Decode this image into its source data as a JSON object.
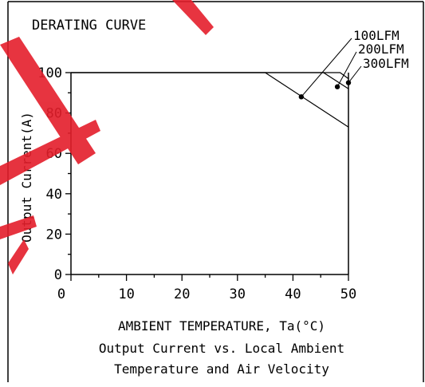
{
  "chart_data": {
    "type": "line",
    "title": "DERATING CURVE",
    "xlabel": "AMBIENT TEMPERATURE, Ta(°C)",
    "ylabel": "Output Current(A)",
    "caption_lines": [
      "Output Current vs. Local Ambient",
      "Temperature and Air Velocity"
    ],
    "xlim": [
      0,
      50
    ],
    "ylim": [
      0,
      100
    ],
    "x_ticks": [
      0,
      10,
      20,
      30,
      40,
      50
    ],
    "y_ticks": [
      0,
      20,
      40,
      60,
      80,
      100
    ],
    "grid": false,
    "series": [
      {
        "name": "100LFM",
        "x": [
          0,
          35,
          50
        ],
        "y": [
          100,
          100,
          73
        ],
        "marker_at": [
          41.5,
          88
        ]
      },
      {
        "name": "200LFM",
        "x": [
          0,
          45.5,
          50
        ],
        "y": [
          100,
          100,
          92
        ],
        "marker_at": [
          48,
          93
        ]
      },
      {
        "name": "300LFM",
        "x": [
          0,
          48.5,
          50
        ],
        "y": [
          100,
          100,
          97
        ],
        "marker_at": [
          50,
          95
        ]
      }
    ],
    "watermark_color": "#e41e2b"
  }
}
